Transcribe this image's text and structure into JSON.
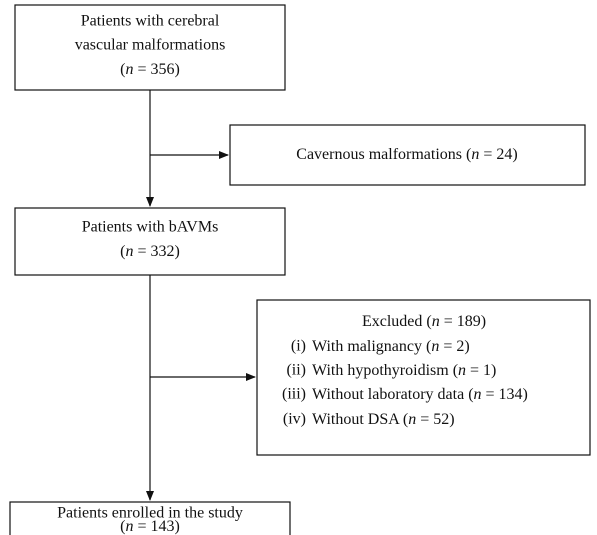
{
  "nodes": [
    {
      "lines": [
        "Patients with cerebral",
        "vascular malformations",
        "(n = 356)"
      ]
    },
    {
      "lines": [
        "Cavernous malformations (n = 24)"
      ]
    },
    {
      "lines": [
        "Patients with bAVMs",
        "(n = 332)"
      ]
    },
    {
      "title": "Excluded (n = 189)",
      "items": [
        {
          "marker": "(i)",
          "text": "With malignancy (n = 2)"
        },
        {
          "marker": "(ii)",
          "text": "With hypothyroidism (n = 1)"
        },
        {
          "marker": "(iii)",
          "text": "Without laboratory data (n = 134)"
        },
        {
          "marker": "(iv)",
          "text": "Without DSA (n = 52)"
        }
      ]
    },
    {
      "lines": [
        "Patients enrolled in the study",
        "(n = 143)"
      ]
    }
  ]
}
